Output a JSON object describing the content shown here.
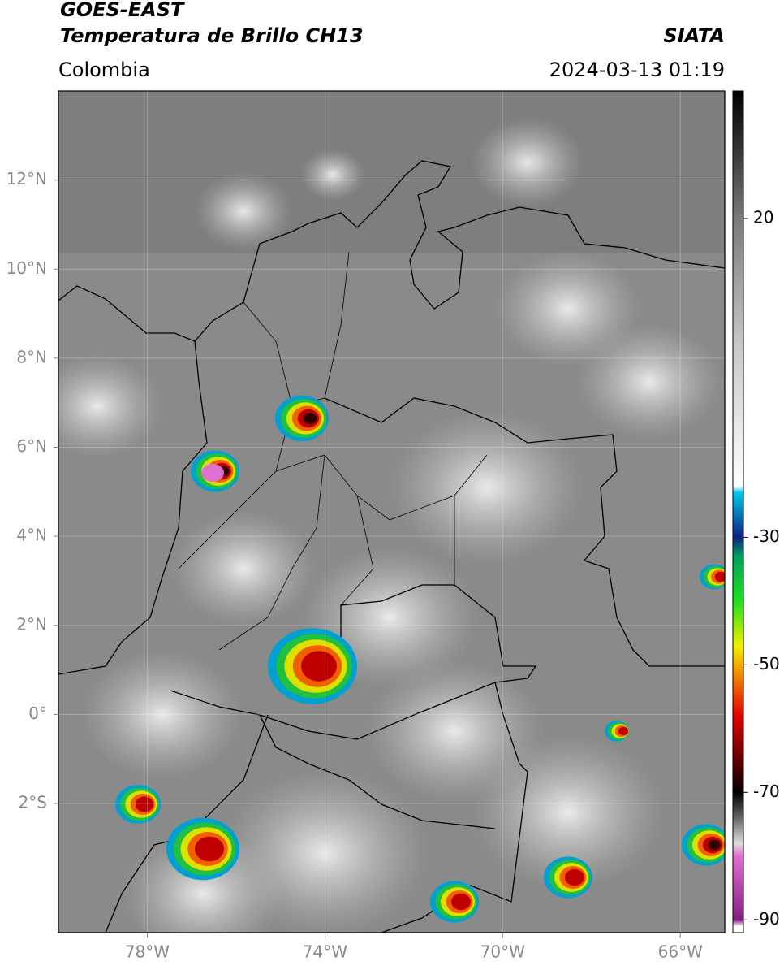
{
  "header": {
    "title": "GOES-EAST",
    "subtitle": "Temperatura de Brillo CH13",
    "source": "SIATA",
    "region": "Colombia",
    "datetime": "2024-03-13 01:19"
  },
  "map": {
    "xlim": [
      -80,
      -65
    ],
    "ylim": [
      -4.9,
      14
    ],
    "xticks": [
      {
        "value": -78,
        "label": "78°W"
      },
      {
        "value": -74,
        "label": "74°W"
      },
      {
        "value": -70,
        "label": "70°W"
      },
      {
        "value": -66,
        "label": "66°W"
      }
    ],
    "yticks": [
      {
        "value": 12,
        "label": "12°N"
      },
      {
        "value": 10,
        "label": "10°N"
      },
      {
        "value": 8,
        "label": "8°N"
      },
      {
        "value": 6,
        "label": "6°N"
      },
      {
        "value": 4,
        "label": "4°N"
      },
      {
        "value": 2,
        "label": "2°N"
      },
      {
        "value": 0,
        "label": "0°"
      },
      {
        "value": -2,
        "label": "2°S"
      }
    ],
    "grid": true
  },
  "colorbar": {
    "clim": [
      -92,
      40
    ],
    "ticks": [
      20,
      -30,
      -50,
      -70,
      -90
    ],
    "stops": [
      {
        "value": 40,
        "color": "#000000"
      },
      {
        "value": 30,
        "color": "#3a3a3a"
      },
      {
        "value": 20,
        "color": "#7a7a7a"
      },
      {
        "value": 0,
        "color": "#c8c8c8"
      },
      {
        "value": -22,
        "color": "#ffffff"
      },
      {
        "value": -23,
        "color": "#00c8e8"
      },
      {
        "value": -30,
        "color": "#102080"
      },
      {
        "value": -33,
        "color": "#00a060"
      },
      {
        "value": -40,
        "color": "#20e020"
      },
      {
        "value": -47,
        "color": "#f0f000"
      },
      {
        "value": -52,
        "color": "#f08000"
      },
      {
        "value": -58,
        "color": "#e00000"
      },
      {
        "value": -65,
        "color": "#600000"
      },
      {
        "value": -70,
        "color": "#000000"
      },
      {
        "value": -74,
        "color": "#666666"
      },
      {
        "value": -78,
        "color": "#dddddd"
      },
      {
        "value": -80,
        "color": "#e070d0"
      },
      {
        "value": -90,
        "color": "#802080"
      },
      {
        "value": -91,
        "color": "#ffffff"
      }
    ]
  }
}
